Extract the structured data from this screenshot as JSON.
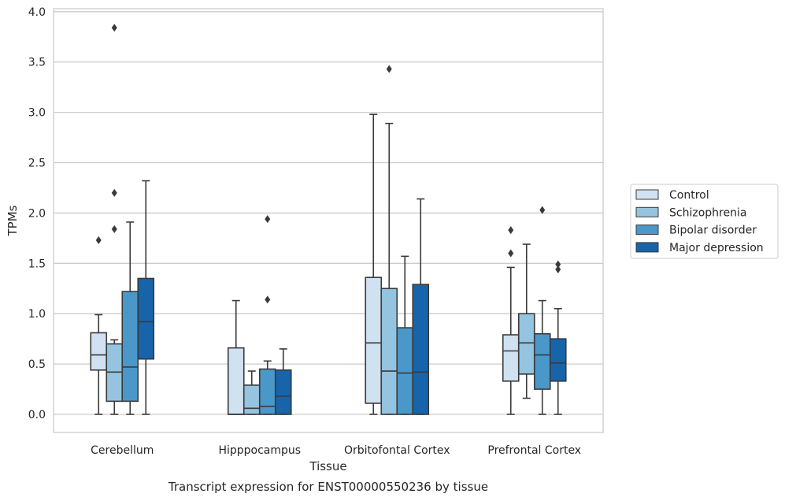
{
  "chart_data": {
    "type": "boxplot",
    "xlabel": "Tissue",
    "ylabel": "TPMs",
    "caption": "Transcript expression for ENST00000550236 by tissue",
    "ylim": [
      -0.18,
      4.03
    ],
    "yticks": [
      "0.0",
      "0.5",
      "1.0",
      "1.5",
      "2.0",
      "2.5",
      "3.0",
      "3.5",
      "4.0"
    ],
    "grid": true,
    "legend_position": "right",
    "categories": [
      "Cerebellum",
      "Hipppocampus",
      "Orbitofontal Cortex",
      "Prefrontal Cortex"
    ],
    "series": [
      {
        "name": "Control",
        "color": "#d0e1f2",
        "boxes": [
          {
            "whislo": 0.0,
            "q1": 0.44,
            "med": 0.59,
            "q3": 0.81,
            "whishi": 0.99,
            "fliers": [
              1.73
            ]
          },
          {
            "whislo": 0.0,
            "q1": 0.0,
            "med": 0.0,
            "q3": 0.66,
            "whishi": 1.13,
            "fliers": []
          },
          {
            "whislo": 0.0,
            "q1": 0.11,
            "med": 0.71,
            "q3": 1.36,
            "whishi": 2.98,
            "fliers": []
          },
          {
            "whislo": 0.0,
            "q1": 0.33,
            "med": 0.63,
            "q3": 0.79,
            "whishi": 1.46,
            "fliers": [
              1.6,
              1.83
            ]
          }
        ]
      },
      {
        "name": "Schizophrenia",
        "color": "#94c4df",
        "boxes": [
          {
            "whislo": 0.0,
            "q1": 0.13,
            "med": 0.42,
            "q3": 0.7,
            "whishi": 0.74,
            "fliers": [
              1.84,
              2.2,
              3.84
            ]
          },
          {
            "whislo": 0.0,
            "q1": 0.0,
            "med": 0.06,
            "q3": 0.29,
            "whishi": 0.43,
            "fliers": []
          },
          {
            "whislo": 0.0,
            "q1": 0.0,
            "med": 0.43,
            "q3": 1.25,
            "whishi": 2.89,
            "fliers": [
              3.43
            ]
          },
          {
            "whislo": 0.16,
            "q1": 0.4,
            "med": 0.71,
            "q3": 1.0,
            "whishi": 1.69,
            "fliers": []
          }
        ]
      },
      {
        "name": "Bipolar disorder",
        "color": "#4a98c9",
        "boxes": [
          {
            "whislo": 0.0,
            "q1": 0.13,
            "med": 0.47,
            "q3": 1.22,
            "whishi": 1.91,
            "fliers": []
          },
          {
            "whislo": 0.0,
            "q1": 0.0,
            "med": 0.08,
            "q3": 0.45,
            "whishi": 0.53,
            "fliers": [
              1.14,
              1.94
            ]
          },
          {
            "whislo": 0.0,
            "q1": 0.0,
            "med": 0.41,
            "q3": 0.86,
            "whishi": 1.57,
            "fliers": []
          },
          {
            "whislo": 0.0,
            "q1": 0.25,
            "med": 0.59,
            "q3": 0.8,
            "whishi": 1.13,
            "fliers": [
              2.03
            ]
          }
        ]
      },
      {
        "name": "Major depression",
        "color": "#1764ab",
        "boxes": [
          {
            "whislo": 0.0,
            "q1": 0.55,
            "med": 0.92,
            "q3": 1.35,
            "whishi": 2.32,
            "fliers": []
          },
          {
            "whislo": 0.0,
            "q1": 0.0,
            "med": 0.18,
            "q3": 0.44,
            "whishi": 0.65,
            "fliers": []
          },
          {
            "whislo": 0.0,
            "q1": 0.0,
            "med": 0.42,
            "q3": 1.29,
            "whishi": 2.14,
            "fliers": []
          },
          {
            "whislo": 0.0,
            "q1": 0.33,
            "med": 0.51,
            "q3": 0.75,
            "whishi": 1.05,
            "fliers": [
              1.44,
              1.49
            ]
          }
        ]
      }
    ]
  }
}
